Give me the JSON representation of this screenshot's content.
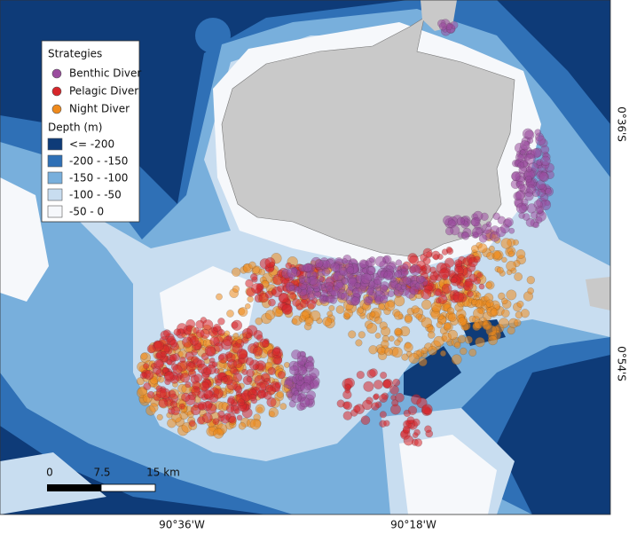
{
  "legend": {
    "strategies_title": "Strategies",
    "strategies": [
      {
        "label": "Benthic Diver",
        "color": "#9a4c9e"
      },
      {
        "label": "Pelagic Diver",
        "color": "#d7262b"
      },
      {
        "label": "Night Diver",
        "color": "#ef8a1c"
      }
    ],
    "depth_title": "Depth (m)",
    "depth": [
      {
        "label": "<= -200",
        "color": "#0e3b78"
      },
      {
        "label": "-200 - -150",
        "color": "#2f70b6"
      },
      {
        "label": "-150 - -100",
        "color": "#78afdc"
      },
      {
        "label": "-100 - -50",
        "color": "#c8ddf0"
      },
      {
        "label": "-50 - 0",
        "color": "#f6f8fb"
      }
    ]
  },
  "scale_bar": {
    "labels": [
      "0",
      "7.5",
      "15 km"
    ]
  },
  "axes": {
    "latitude": [
      "0°36'S",
      "0°54'S"
    ],
    "longitude": [
      "90°36'W",
      "90°18'W"
    ]
  }
}
